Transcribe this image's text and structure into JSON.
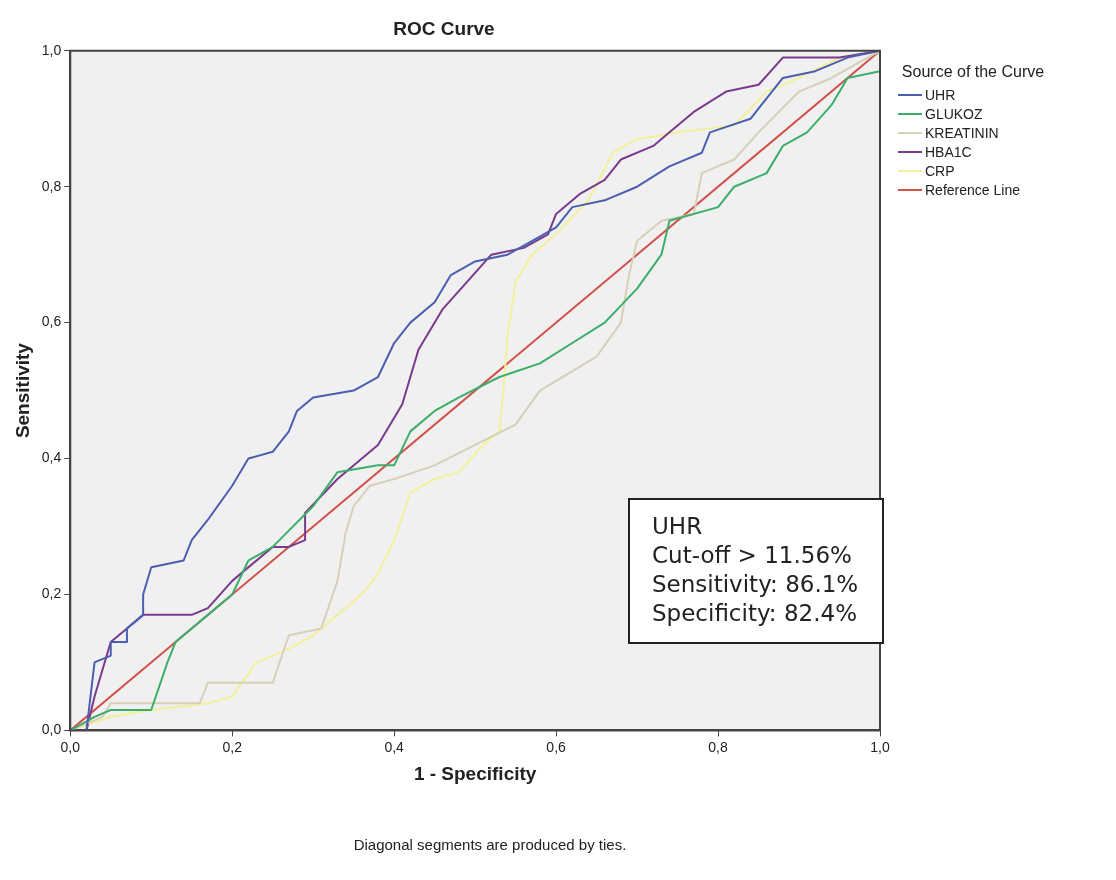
{
  "chart_data": {
    "type": "line",
    "title": "ROC Curve",
    "xlabel": "1 - Specificity",
    "ylabel": "Sensitivity",
    "legend_title": "Source of the Curve",
    "legend": "right",
    "grid": false,
    "marker": "none",
    "line_style": "solid",
    "xlim": [
      0,
      1
    ],
    "ylim": [
      0,
      1
    ],
    "xticks": [
      {
        "value": 0,
        "label": "0,0"
      },
      {
        "value": 0.2,
        "label": "0,2"
      },
      {
        "value": 0.4,
        "label": "0,4"
      },
      {
        "value": 0.6,
        "label": "0,6"
      },
      {
        "value": 0.8,
        "label": "0,8"
      },
      {
        "value": 1,
        "label": "1,0"
      }
    ],
    "yticks": [
      {
        "value": 0,
        "label": "0,0"
      },
      {
        "value": 0.2,
        "label": "0,2"
      },
      {
        "value": 0.4,
        "label": "0,4"
      },
      {
        "value": 0.6,
        "label": "0,6"
      },
      {
        "value": 0.8,
        "label": "0,8"
      },
      {
        "value": 1,
        "label": "1,0"
      }
    ],
    "series": [
      {
        "name": "UHR",
        "color": "#4a5fb0",
        "x": [
          0.02,
          0.03,
          0.05,
          0.05,
          0.07,
          0.07,
          0.09,
          0.09,
          0.1,
          0.14,
          0.15,
          0.17,
          0.2,
          0.22,
          0.25,
          0.27,
          0.28,
          0.3,
          0.35,
          0.38,
          0.4,
          0.42,
          0.45,
          0.47,
          0.5,
          0.54,
          0.57,
          0.6,
          0.62,
          0.66,
          0.7,
          0.74,
          0.78,
          0.79,
          0.84,
          0.86,
          0.88,
          0.92,
          0.96,
          1
        ],
        "values": [
          0,
          0.1,
          0.11,
          0.13,
          0.13,
          0.15,
          0.17,
          0.2,
          0.24,
          0.25,
          0.28,
          0.31,
          0.36,
          0.4,
          0.41,
          0.44,
          0.47,
          0.49,
          0.5,
          0.52,
          0.57,
          0.6,
          0.63,
          0.67,
          0.69,
          0.7,
          0.72,
          0.74,
          0.77,
          0.78,
          0.8,
          0.83,
          0.85,
          0.88,
          0.9,
          0.93,
          0.96,
          0.97,
          0.99,
          1
        ]
      },
      {
        "name": "GLUKOZ",
        "color": "#3cae6a",
        "x": [
          0,
          0.03,
          0.05,
          0.1,
          0.12,
          0.13,
          0.17,
          0.2,
          0.22,
          0.25,
          0.3,
          0.33,
          0.38,
          0.4,
          0.42,
          0.45,
          0.48,
          0.53,
          0.58,
          0.62,
          0.66,
          0.7,
          0.73,
          0.74,
          0.8,
          0.82,
          0.86,
          0.88,
          0.91,
          0.94,
          0.96,
          1,
          1
        ],
        "values": [
          0,
          0.02,
          0.03,
          0.03,
          0.1,
          0.13,
          0.17,
          0.2,
          0.25,
          0.27,
          0.33,
          0.38,
          0.39,
          0.39,
          0.44,
          0.47,
          0.49,
          0.52,
          0.54,
          0.57,
          0.6,
          0.65,
          0.7,
          0.75,
          0.77,
          0.8,
          0.82,
          0.86,
          0.88,
          0.92,
          0.96,
          0.97,
          1
        ]
      },
      {
        "name": "KREATININ",
        "color": "#d6d0b8",
        "x": [
          0,
          0.04,
          0.05,
          0.16,
          0.17,
          0.25,
          0.27,
          0.31,
          0.33,
          0.34,
          0.35,
          0.37,
          0.4,
          0.45,
          0.5,
          0.55,
          0.58,
          0.65,
          0.68,
          0.69,
          0.7,
          0.73,
          0.77,
          0.78,
          0.82,
          0.85,
          0.9,
          0.94,
          1
        ],
        "values": [
          0,
          0.02,
          0.04,
          0.04,
          0.07,
          0.07,
          0.14,
          0.15,
          0.22,
          0.29,
          0.33,
          0.36,
          0.37,
          0.39,
          0.42,
          0.45,
          0.5,
          0.55,
          0.6,
          0.67,
          0.72,
          0.75,
          0.76,
          0.82,
          0.84,
          0.88,
          0.94,
          0.96,
          1
        ]
      },
      {
        "name": "HBA1C",
        "color": "#7a3a8c",
        "x": [
          0,
          0.02,
          0.03,
          0.05,
          0.07,
          0.09,
          0.15,
          0.17,
          0.2,
          0.25,
          0.27,
          0.29,
          0.29,
          0.33,
          0.38,
          0.41,
          0.43,
          0.46,
          0.49,
          0.52,
          0.56,
          0.59,
          0.6,
          0.63,
          0.66,
          0.68,
          0.72,
          0.74,
          0.77,
          0.81,
          0.85,
          0.88,
          0.95,
          1
        ],
        "values": [
          0,
          0,
          0.05,
          0.13,
          0.15,
          0.17,
          0.17,
          0.18,
          0.22,
          0.27,
          0.27,
          0.28,
          0.32,
          0.37,
          0.42,
          0.48,
          0.56,
          0.62,
          0.66,
          0.7,
          0.71,
          0.73,
          0.76,
          0.79,
          0.81,
          0.84,
          0.86,
          0.88,
          0.91,
          0.94,
          0.95,
          0.99,
          0.99,
          1
        ]
      },
      {
        "name": "CRP",
        "color": "#f2f09a",
        "x": [
          0,
          0.05,
          0.1,
          0.17,
          0.2,
          0.23,
          0.27,
          0.3,
          0.33,
          0.36,
          0.38,
          0.4,
          0.42,
          0.45,
          0.48,
          0.51,
          0.53,
          0.535,
          0.54,
          0.55,
          0.57,
          0.6,
          0.64,
          0.67,
          0.7,
          0.75,
          0.82,
          0.86,
          0.9,
          0.95,
          1
        ],
        "values": [
          0,
          0.02,
          0.03,
          0.04,
          0.05,
          0.1,
          0.12,
          0.14,
          0.17,
          0.2,
          0.23,
          0.28,
          0.35,
          0.37,
          0.38,
          0.42,
          0.44,
          0.5,
          0.58,
          0.66,
          0.7,
          0.73,
          0.78,
          0.85,
          0.87,
          0.88,
          0.89,
          0.94,
          0.96,
          0.99,
          1
        ]
      },
      {
        "name": "Reference Line",
        "color": "#d0504a",
        "x": [
          0,
          1
        ],
        "values": [
          0,
          1
        ]
      }
    ],
    "annotations": [
      "UHR",
      "Cut-off > 11.56%",
      "Sensitivity: 86.1%",
      "Specificity: 82.4%",
      "Diagonal segments are produced by ties."
    ]
  }
}
